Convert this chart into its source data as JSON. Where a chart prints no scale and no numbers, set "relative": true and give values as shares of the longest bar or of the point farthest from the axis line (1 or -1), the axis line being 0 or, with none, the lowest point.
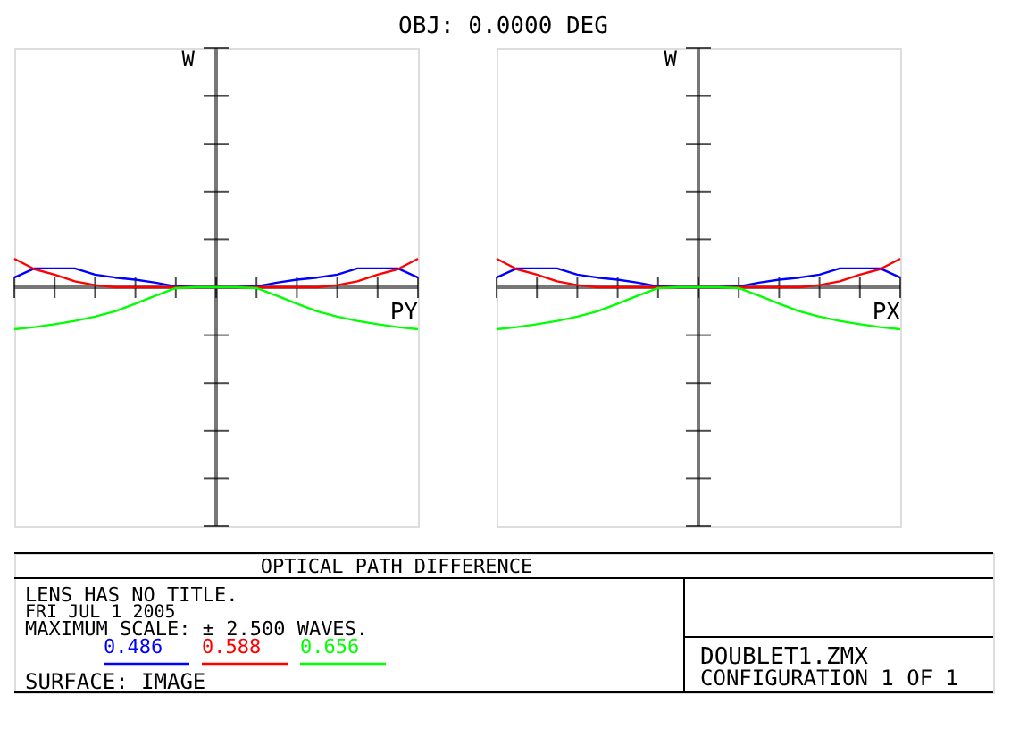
{
  "chart_data": [
    {
      "type": "line",
      "xlabel": "PY",
      "ylabel": "W",
      "relative": true,
      "marker": "none",
      "line_style": "solid",
      "categories": [
        null,
        null,
        null,
        null,
        null,
        null,
        null,
        null,
        null,
        null,
        null,
        null,
        null,
        null,
        null,
        null,
        null,
        null,
        null,
        null,
        null
      ],
      "series": [
        {
          "name": "0.486",
          "color": "#0000ff",
          "values": [
            0.23,
            0.45,
            0.45,
            0.45,
            0.3,
            0.23,
            0.18,
            0.11,
            0.02,
            0,
            0,
            0,
            0.02,
            0.11,
            0.18,
            0.23,
            0.3,
            0.45,
            0.45,
            0.45,
            0.23
          ]
        },
        {
          "name": "0.588",
          "color": "#ff0000",
          "values": [
            0.68,
            0.43,
            0.3,
            0.14,
            0.05,
            0,
            0,
            0,
            0,
            0,
            0,
            0,
            0,
            0,
            0,
            0,
            0.05,
            0.14,
            0.3,
            0.43,
            0.68
          ]
        },
        {
          "name": "0.656",
          "color": "#00ff00",
          "values": [
            -1,
            -0.95,
            -0.88,
            -0.8,
            -0.7,
            -0.57,
            -0.39,
            -0.2,
            -0.02,
            0,
            0,
            0,
            -0.02,
            -0.2,
            -0.39,
            -0.57,
            -0.7,
            -0.8,
            -0.88,
            -0.95,
            -1
          ]
        }
      ],
      "annotations": [
        "OBJ: 0.0000 DEG",
        "LENS HAS NO TITLE.",
        "FRI JUL 1 2005",
        "MAXIMUM SCALE: ± 2.500 WAVES.",
        "SURFACE: IMAGE",
        "OPTICAL PATH DIFFERENCE",
        "DOUBLET1.ZMX",
        "CONFIGURATION 1 OF 1"
      ]
    },
    {
      "type": "line",
      "xlabel": "PX",
      "ylabel": "W",
      "relative": true,
      "marker": "none",
      "line_style": "solid",
      "categories": [
        null,
        null,
        null,
        null,
        null,
        null,
        null,
        null,
        null,
        null,
        null,
        null,
        null,
        null,
        null,
        null,
        null,
        null,
        null,
        null,
        null
      ],
      "series": [
        {
          "color": "#0000ff",
          "values": [
            0.23,
            0.45,
            0.45,
            0.45,
            0.3,
            0.23,
            0.18,
            0.11,
            0.02,
            0,
            0,
            0,
            0.02,
            0.11,
            0.18,
            0.23,
            0.3,
            0.45,
            0.45,
            0.45,
            0.23
          ]
        },
        {
          "color": "#ff0000",
          "values": [
            0.68,
            0.43,
            0.3,
            0.14,
            0.05,
            0,
            0,
            0,
            0,
            0,
            0,
            0,
            0,
            0,
            0,
            0,
            0.05,
            0.14,
            0.3,
            0.43,
            0.68
          ]
        },
        {
          "color": "#00ff00",
          "values": [
            -1,
            -0.95,
            -0.88,
            -0.8,
            -0.7,
            -0.57,
            -0.39,
            -0.2,
            -0.02,
            0,
            0,
            0,
            -0.02,
            -0.2,
            -0.39,
            -0.57,
            -0.7,
            -0.8,
            -0.88,
            -0.95,
            -1
          ]
        }
      ]
    }
  ]
}
